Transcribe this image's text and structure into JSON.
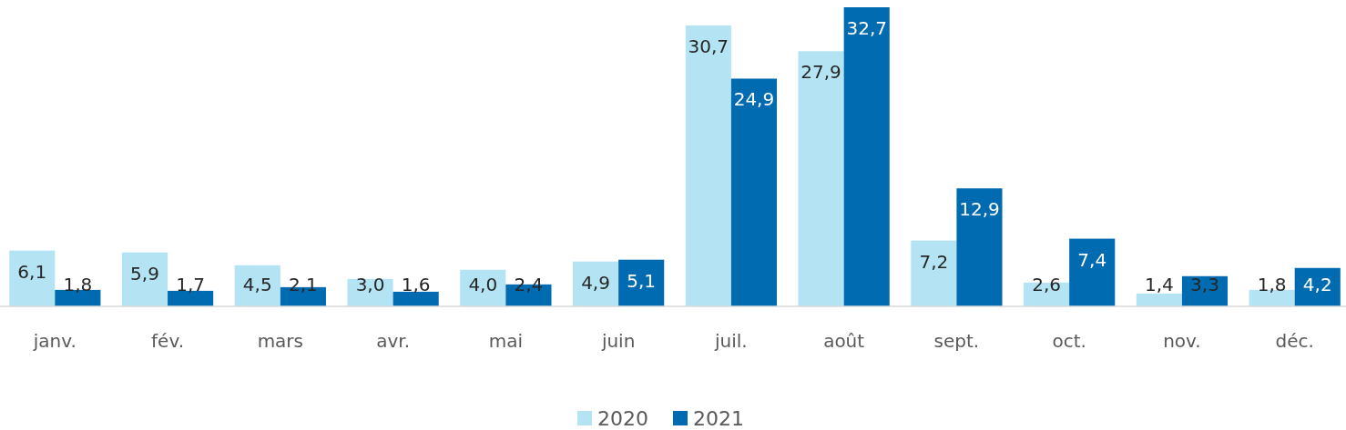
{
  "chart_data": {
    "type": "bar",
    "categories": [
      "janv.",
      "fév.",
      "mars",
      "avr.",
      "mai",
      "juin",
      "juil.",
      "août",
      "sept.",
      "oct.",
      "nov.",
      "déc."
    ],
    "series": [
      {
        "name": "2020",
        "color": "#b4e4f4",
        "values": [
          6.1,
          5.9,
          4.5,
          3.0,
          4.0,
          4.9,
          30.7,
          27.9,
          7.2,
          2.6,
          1.4,
          1.8
        ],
        "value_labels": [
          "6,1",
          "5,9",
          "4,5",
          "3,0",
          "4,0",
          "4,9",
          "30,7",
          "27,9",
          "7,2",
          "2,6",
          "1,4",
          "1,8"
        ]
      },
      {
        "name": "2021",
        "color": "#006bb0",
        "values": [
          1.8,
          1.7,
          2.1,
          1.6,
          2.4,
          5.1,
          24.9,
          32.7,
          12.9,
          7.4,
          3.3,
          4.2
        ],
        "value_labels": [
          "1,8",
          "1,7",
          "2,1",
          "1,6",
          "2,4",
          "5,1",
          "24,9",
          "32,7",
          "12,9",
          "7,4",
          "3,3",
          "4,2"
        ]
      }
    ],
    "legend": "bottom"
  }
}
